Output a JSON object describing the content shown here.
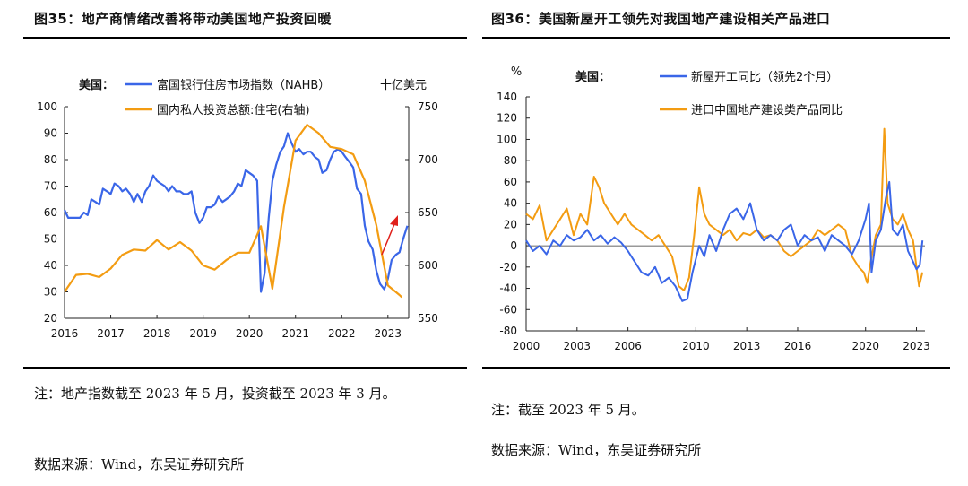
{
  "left": {
    "title": "图35：地产商情绪改善将带动美国地产投资回暖",
    "note": "注：地产指数截至 2023 年 5 月，投资截至 2023 年 3 月。",
    "source": "数据来源：Wind，东吴证券研究所"
  },
  "right": {
    "title": "图36：美国新屋开工领先对我国地产建设相关产品进口",
    "note": "注：截至 2023 年 5 月。",
    "source": "数据来源：Wind，东吴证券研究所"
  },
  "chart_data": [
    {
      "type": "line",
      "country_label": "美国：",
      "right_unit": "十亿美元",
      "x_ticks": [
        "2016",
        "2017",
        "2018",
        "2019",
        "2020",
        "2021",
        "2022",
        "2023"
      ],
      "xlim": [
        2016.0,
        2023.45
      ],
      "ylim_left": [
        20,
        100
      ],
      "yticks_left": [
        20,
        30,
        40,
        50,
        60,
        70,
        80,
        90,
        100
      ],
      "ylim_right": [
        550,
        750
      ],
      "yticks_right": [
        550,
        600,
        650,
        700,
        750
      ],
      "series": [
        {
          "name": "富国银行住房市场指数（NAHB）",
          "axis": "left",
          "color": "#3a66e8",
          "points": [
            [
              2016.0,
              61
            ],
            [
              2016.08,
              58
            ],
            [
              2016.17,
              58
            ],
            [
              2016.25,
              58
            ],
            [
              2016.33,
              58
            ],
            [
              2016.42,
              60
            ],
            [
              2016.5,
              59
            ],
            [
              2016.58,
              65
            ],
            [
              2016.67,
              64
            ],
            [
              2016.75,
              63
            ],
            [
              2016.83,
              69
            ],
            [
              2016.92,
              68
            ],
            [
              2017.0,
              67
            ],
            [
              2017.08,
              71
            ],
            [
              2017.17,
              70
            ],
            [
              2017.25,
              68
            ],
            [
              2017.33,
              69
            ],
            [
              2017.42,
              67
            ],
            [
              2017.5,
              64
            ],
            [
              2017.58,
              67
            ],
            [
              2017.67,
              64
            ],
            [
              2017.75,
              68
            ],
            [
              2017.83,
              70
            ],
            [
              2017.92,
              74
            ],
            [
              2018.0,
              72
            ],
            [
              2018.08,
              71
            ],
            [
              2018.17,
              70
            ],
            [
              2018.25,
              68
            ],
            [
              2018.33,
              70
            ],
            [
              2018.42,
              68
            ],
            [
              2018.5,
              68
            ],
            [
              2018.58,
              67
            ],
            [
              2018.67,
              67
            ],
            [
              2018.75,
              68
            ],
            [
              2018.83,
              60
            ],
            [
              2018.92,
              56
            ],
            [
              2019.0,
              58
            ],
            [
              2019.08,
              62
            ],
            [
              2019.17,
              62
            ],
            [
              2019.25,
              63
            ],
            [
              2019.33,
              66
            ],
            [
              2019.42,
              64
            ],
            [
              2019.5,
              65
            ],
            [
              2019.58,
              66
            ],
            [
              2019.67,
              68
            ],
            [
              2019.75,
              71
            ],
            [
              2019.83,
              70
            ],
            [
              2019.92,
              76
            ],
            [
              2020.0,
              75
            ],
            [
              2020.08,
              74
            ],
            [
              2020.17,
              72
            ],
            [
              2020.25,
              30
            ],
            [
              2020.33,
              37
            ],
            [
              2020.42,
              58
            ],
            [
              2020.5,
              72
            ],
            [
              2020.58,
              78
            ],
            [
              2020.67,
              83
            ],
            [
              2020.75,
              85
            ],
            [
              2020.83,
              90
            ],
            [
              2020.92,
              86
            ],
            [
              2021.0,
              83
            ],
            [
              2021.08,
              84
            ],
            [
              2021.17,
              82
            ],
            [
              2021.25,
              83
            ],
            [
              2021.33,
              83
            ],
            [
              2021.42,
              81
            ],
            [
              2021.5,
              80
            ],
            [
              2021.58,
              75
            ],
            [
              2021.67,
              76
            ],
            [
              2021.75,
              80
            ],
            [
              2021.83,
              83
            ],
            [
              2021.92,
              84
            ],
            [
              2022.0,
              83
            ],
            [
              2022.08,
              81
            ],
            [
              2022.17,
              79
            ],
            [
              2022.25,
              77
            ],
            [
              2022.33,
              69
            ],
            [
              2022.42,
              67
            ],
            [
              2022.5,
              55
            ],
            [
              2022.58,
              49
            ],
            [
              2022.67,
              46
            ],
            [
              2022.75,
              38
            ],
            [
              2022.83,
              33
            ],
            [
              2022.92,
              31
            ],
            [
              2023.0,
              35
            ],
            [
              2023.08,
              42
            ],
            [
              2023.17,
              44
            ],
            [
              2023.25,
              45
            ],
            [
              2023.33,
              50
            ],
            [
              2023.42,
              55
            ]
          ]
        },
        {
          "name": "国内私人投资总额:住宅(右轴)",
          "axis": "right",
          "color": "#f39c12",
          "points": [
            [
              2016.0,
              575
            ],
            [
              2016.25,
              591
            ],
            [
              2016.5,
              592
            ],
            [
              2016.75,
              589
            ],
            [
              2017.0,
              597
            ],
            [
              2017.25,
              610
            ],
            [
              2017.5,
              615
            ],
            [
              2017.75,
              614
            ],
            [
              2018.0,
              624
            ],
            [
              2018.25,
              615
            ],
            [
              2018.5,
              622
            ],
            [
              2018.75,
              614
            ],
            [
              2019.0,
              600
            ],
            [
              2019.25,
              596
            ],
            [
              2019.5,
              605
            ],
            [
              2019.75,
              612
            ],
            [
              2020.0,
              612
            ],
            [
              2020.25,
              637
            ],
            [
              2020.5,
              578
            ],
            [
              2020.75,
              655
            ],
            [
              2021.0,
              718
            ],
            [
              2021.25,
              733
            ],
            [
              2021.5,
              725
            ],
            [
              2021.75,
              712
            ],
            [
              2022.0,
              710
            ],
            [
              2022.25,
              705
            ],
            [
              2022.5,
              680
            ],
            [
              2022.75,
              638
            ],
            [
              2023.0,
              581
            ],
            [
              2023.25,
              572
            ],
            [
              2023.3,
              570
            ]
          ]
        }
      ],
      "annotation": "red-upward-arrow"
    },
    {
      "type": "line",
      "ylabel": "%",
      "country_label": "美国：",
      "x_ticks": [
        "2000",
        "2003",
        "2006",
        "2010",
        "2013",
        "2016",
        "2020",
        "2023"
      ],
      "xlim": [
        2000.0,
        2023.5
      ],
      "ylim": [
        -80,
        140
      ],
      "yticks": [
        -80,
        -60,
        -40,
        -20,
        0,
        20,
        40,
        60,
        80,
        100,
        120,
        140
      ],
      "series": [
        {
          "name": "新屋开工同比（领先2个月）",
          "color": "#3a66e8",
          "points": [
            [
              2000.0,
              5
            ],
            [
              2000.4,
              -5
            ],
            [
              2000.8,
              0
            ],
            [
              2001.2,
              -8
            ],
            [
              2001.6,
              5
            ],
            [
              2002.0,
              0
            ],
            [
              2002.4,
              10
            ],
            [
              2002.8,
              5
            ],
            [
              2003.2,
              8
            ],
            [
              2003.6,
              15
            ],
            [
              2004.0,
              5
            ],
            [
              2004.4,
              10
            ],
            [
              2004.8,
              2
            ],
            [
              2005.2,
              8
            ],
            [
              2005.6,
              3
            ],
            [
              2006.0,
              -5
            ],
            [
              2006.4,
              -15
            ],
            [
              2006.8,
              -25
            ],
            [
              2007.2,
              -28
            ],
            [
              2007.6,
              -20
            ],
            [
              2008.0,
              -35
            ],
            [
              2008.4,
              -30
            ],
            [
              2008.8,
              -38
            ],
            [
              2009.2,
              -52
            ],
            [
              2009.5,
              -50
            ],
            [
              2009.8,
              -25
            ],
            [
              2010.2,
              0
            ],
            [
              2010.5,
              -10
            ],
            [
              2010.8,
              10
            ],
            [
              2011.2,
              -5
            ],
            [
              2011.6,
              15
            ],
            [
              2012.0,
              30
            ],
            [
              2012.4,
              35
            ],
            [
              2012.8,
              25
            ],
            [
              2013.2,
              40
            ],
            [
              2013.6,
              15
            ],
            [
              2014.0,
              5
            ],
            [
              2014.4,
              10
            ],
            [
              2014.8,
              5
            ],
            [
              2015.2,
              15
            ],
            [
              2015.6,
              20
            ],
            [
              2016.0,
              0
            ],
            [
              2016.4,
              10
            ],
            [
              2016.8,
              5
            ],
            [
              2017.2,
              8
            ],
            [
              2017.6,
              -5
            ],
            [
              2018.0,
              10
            ],
            [
              2018.4,
              5
            ],
            [
              2018.8,
              0
            ],
            [
              2019.2,
              -8
            ],
            [
              2019.6,
              5
            ],
            [
              2020.0,
              25
            ],
            [
              2020.2,
              40
            ],
            [
              2020.35,
              -25
            ],
            [
              2020.6,
              5
            ],
            [
              2020.9,
              15
            ],
            [
              2021.2,
              45
            ],
            [
              2021.4,
              60
            ],
            [
              2021.6,
              15
            ],
            [
              2021.9,
              10
            ],
            [
              2022.2,
              20
            ],
            [
              2022.5,
              -5
            ],
            [
              2022.8,
              -15
            ],
            [
              2023.0,
              -22
            ],
            [
              2023.2,
              -18
            ],
            [
              2023.35,
              5
            ]
          ]
        },
        {
          "name": "进口中国地产建设类产品同比",
          "color": "#f39c12",
          "points": [
            [
              2000.0,
              30
            ],
            [
              2000.4,
              25
            ],
            [
              2000.8,
              38
            ],
            [
              2001.2,
              5
            ],
            [
              2001.6,
              15
            ],
            [
              2002.0,
              25
            ],
            [
              2002.4,
              35
            ],
            [
              2002.8,
              10
            ],
            [
              2003.2,
              30
            ],
            [
              2003.6,
              20
            ],
            [
              2004.0,
              65
            ],
            [
              2004.3,
              55
            ],
            [
              2004.6,
              40
            ],
            [
              2005.0,
              30
            ],
            [
              2005.4,
              20
            ],
            [
              2005.8,
              30
            ],
            [
              2006.2,
              20
            ],
            [
              2006.6,
              15
            ],
            [
              2007.0,
              10
            ],
            [
              2007.4,
              5
            ],
            [
              2007.8,
              10
            ],
            [
              2008.2,
              0
            ],
            [
              2008.6,
              -10
            ],
            [
              2009.0,
              -38
            ],
            [
              2009.3,
              -42
            ],
            [
              2009.6,
              -30
            ],
            [
              2009.9,
              10
            ],
            [
              2010.2,
              55
            ],
            [
              2010.5,
              30
            ],
            [
              2010.8,
              20
            ],
            [
              2011.2,
              15
            ],
            [
              2011.6,
              10
            ],
            [
              2012.0,
              15
            ],
            [
              2012.4,
              5
            ],
            [
              2012.8,
              12
            ],
            [
              2013.2,
              10
            ],
            [
              2013.6,
              15
            ],
            [
              2014.0,
              8
            ],
            [
              2014.4,
              10
            ],
            [
              2014.8,
              5
            ],
            [
              2015.2,
              -5
            ],
            [
              2015.6,
              -10
            ],
            [
              2016.0,
              -5
            ],
            [
              2016.4,
              0
            ],
            [
              2016.8,
              5
            ],
            [
              2017.2,
              15
            ],
            [
              2017.6,
              10
            ],
            [
              2018.0,
              15
            ],
            [
              2018.4,
              20
            ],
            [
              2018.8,
              15
            ],
            [
              2019.2,
              -10
            ],
            [
              2019.6,
              -20
            ],
            [
              2019.9,
              -25
            ],
            [
              2020.1,
              -35
            ],
            [
              2020.3,
              -15
            ],
            [
              2020.6,
              10
            ],
            [
              2020.9,
              20
            ],
            [
              2021.1,
              110
            ],
            [
              2021.3,
              40
            ],
            [
              2021.6,
              25
            ],
            [
              2021.9,
              20
            ],
            [
              2022.2,
              30
            ],
            [
              2022.5,
              15
            ],
            [
              2022.8,
              5
            ],
            [
              2023.0,
              -20
            ],
            [
              2023.15,
              -38
            ],
            [
              2023.35,
              -25
            ]
          ]
        }
      ]
    }
  ]
}
